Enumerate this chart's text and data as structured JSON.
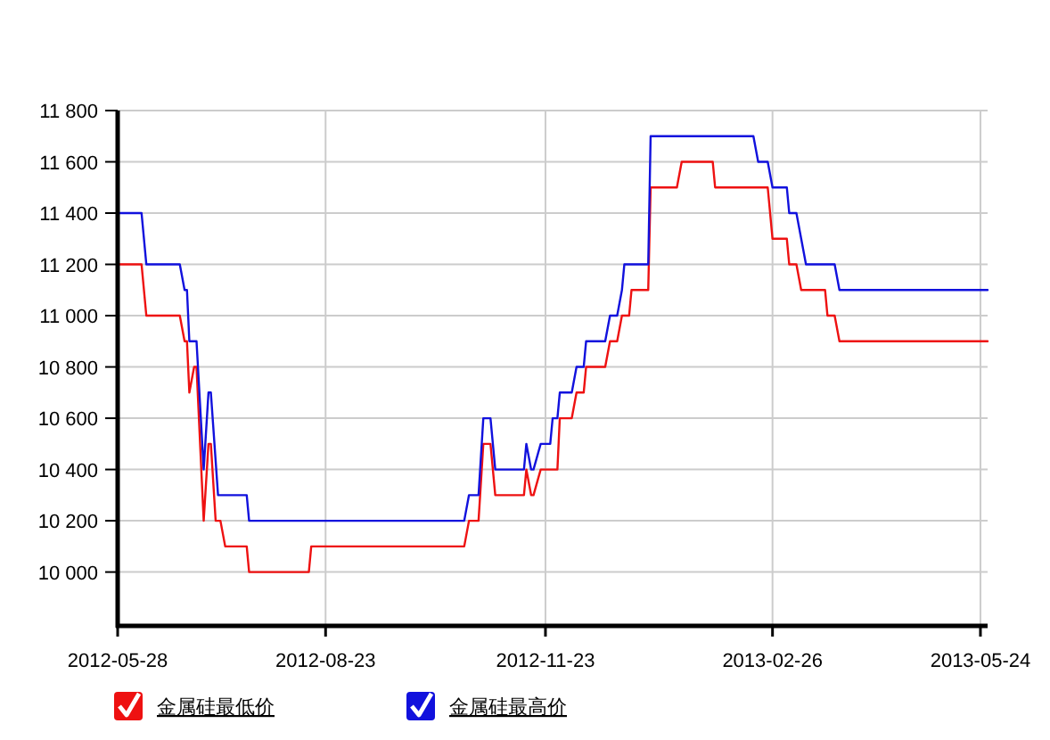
{
  "chart_data": {
    "type": "line",
    "xlim": [
      "2012-05-28",
      "2013-05-27"
    ],
    "xticks": [
      "2012-05-28",
      "2012-08-23",
      "2012-11-23",
      "2013-02-26",
      "2013-05-24"
    ],
    "ylim": [
      9790,
      11800
    ],
    "yticks": [
      {
        "value": 10000,
        "label": "10 000"
      },
      {
        "value": 10200,
        "label": "10 200"
      },
      {
        "value": 10400,
        "label": "10 400"
      },
      {
        "value": 10600,
        "label": "10 600"
      },
      {
        "value": 10800,
        "label": "10 800"
      },
      {
        "value": 11000,
        "label": "11 000"
      },
      {
        "value": 11200,
        "label": "11 200"
      },
      {
        "value": 11400,
        "label": "11 400"
      },
      {
        "value": 11600,
        "label": "11 600"
      },
      {
        "value": 11800,
        "label": "11 800"
      }
    ],
    "grid": true,
    "legend": "bottom",
    "series": [
      {
        "name": "金属硅最低价",
        "color": "#ee1111",
        "x": [
          "2012-05-28",
          "2012-06-07",
          "2012-06-09",
          "2012-06-23",
          "2012-06-25",
          "2012-06-26",
          "2012-06-27",
          "2012-06-29",
          "2012-06-30",
          "2012-07-03",
          "2012-07-05",
          "2012-07-06",
          "2012-07-08",
          "2012-07-10",
          "2012-07-12",
          "2012-07-21",
          "2012-07-22",
          "2012-08-16",
          "2012-08-17",
          "2012-10-20",
          "2012-10-22",
          "2012-10-26",
          "2012-10-28",
          "2012-10-31",
          "2012-11-02",
          "2012-11-14",
          "2012-11-15",
          "2012-11-17",
          "2012-11-18",
          "2012-11-21",
          "2012-11-28",
          "2012-11-29",
          "2012-12-04",
          "2012-12-06",
          "2012-12-09",
          "2012-12-10",
          "2012-12-18",
          "2012-12-20",
          "2012-12-23",
          "2012-12-25",
          "2012-12-28",
          "2012-12-29",
          "2013-01-05",
          "2013-01-06",
          "2013-01-17",
          "2013-01-19",
          "2013-02-01",
          "2013-02-02",
          "2013-02-24",
          "2013-02-26",
          "2013-03-04",
          "2013-03-05",
          "2013-03-08",
          "2013-03-10",
          "2013-03-20",
          "2013-03-21",
          "2013-03-24",
          "2013-03-26",
          "2013-05-27"
        ],
        "values": [
          11200,
          11200,
          11000,
          11000,
          10900,
          10900,
          10700,
          10800,
          10800,
          10200,
          10500,
          10500,
          10200,
          10200,
          10100,
          10100,
          10000,
          10000,
          10100,
          10100,
          10200,
          10200,
          10500,
          10500,
          10300,
          10300,
          10400,
          10300,
          10300,
          10400,
          10400,
          10600,
          10600,
          10700,
          10700,
          10800,
          10800,
          10900,
          10900,
          11000,
          11000,
          11100,
          11100,
          11500,
          11500,
          11600,
          11600,
          11500,
          11500,
          11300,
          11300,
          11200,
          11200,
          11100,
          11100,
          11000,
          11000,
          10900,
          10900
        ]
      },
      {
        "name": "金属硅最高价",
        "color": "#1111dd",
        "x": [
          "2012-05-28",
          "2012-06-07",
          "2012-06-09",
          "2012-06-23",
          "2012-06-25",
          "2012-06-26",
          "2012-06-27",
          "2012-06-30",
          "2012-07-03",
          "2012-07-05",
          "2012-07-06",
          "2012-07-09",
          "2012-07-21",
          "2012-07-22",
          "2012-10-20",
          "2012-10-22",
          "2012-10-26",
          "2012-10-28",
          "2012-10-31",
          "2012-11-02",
          "2012-11-14",
          "2012-11-15",
          "2012-11-17",
          "2012-11-18",
          "2012-11-21",
          "2012-11-25",
          "2012-11-26",
          "2012-11-28",
          "2012-11-29",
          "2012-12-04",
          "2012-12-06",
          "2012-12-09",
          "2012-12-10",
          "2012-12-18",
          "2012-12-20",
          "2012-12-23",
          "2012-12-25",
          "2012-12-26",
          "2013-01-05",
          "2013-01-06",
          "2013-02-18",
          "2013-02-20",
          "2013-02-24",
          "2013-02-26",
          "2013-03-04",
          "2013-03-05",
          "2013-03-08",
          "2013-03-10",
          "2013-03-12",
          "2013-03-24",
          "2013-03-26",
          "2013-05-27"
        ],
        "values": [
          11400,
          11400,
          11200,
          11200,
          11100,
          11100,
          10900,
          10900,
          10400,
          10700,
          10700,
          10300,
          10300,
          10200,
          10200,
          10300,
          10300,
          10600,
          10600,
          10400,
          10400,
          10500,
          10400,
          10400,
          10500,
          10500,
          10600,
          10600,
          10700,
          10700,
          10800,
          10800,
          10900,
          10900,
          11000,
          11000,
          11100,
          11200,
          11200,
          11700,
          11700,
          11600,
          11600,
          11500,
          11500,
          11400,
          11400,
          11300,
          11200,
          11200,
          11100,
          11100
        ]
      }
    ]
  }
}
